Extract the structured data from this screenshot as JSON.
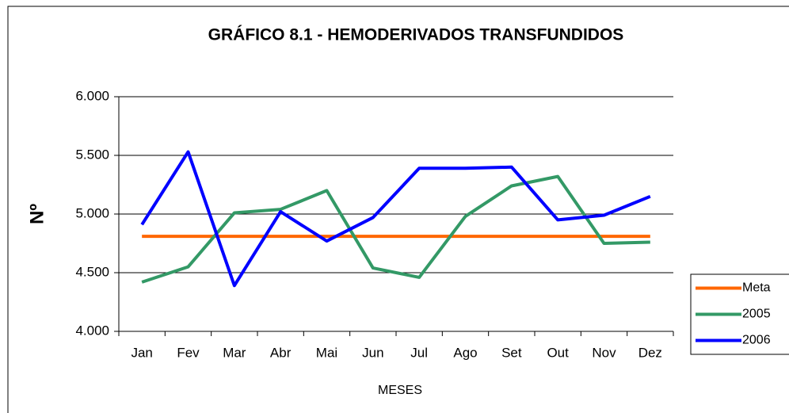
{
  "chart_data": {
    "type": "line",
    "title": "GRÁFICO 8.1 - HEMODERIVADOS TRANSFUNDIDOS",
    "x_label": "MESES",
    "y_label": "Nº",
    "categories": [
      "Jan",
      "Fev",
      "Mar",
      "Abr",
      "Mai",
      "Jun",
      "Jul",
      "Ago",
      "Set",
      "Out",
      "Nov",
      "Dez"
    ],
    "series": [
      {
        "name": "Meta",
        "color": "#ff6600",
        "values": [
          4810,
          4810,
          4810,
          4810,
          4810,
          4810,
          4810,
          4810,
          4810,
          4810,
          4810,
          4810
        ]
      },
      {
        "name": "2005",
        "color": "#339966",
        "values": [
          4420,
          4550,
          5010,
          5040,
          5200,
          4540,
          4460,
          4980,
          5240,
          5320,
          4750,
          4760
        ]
      },
      {
        "name": "2006",
        "color": "#0000ff",
        "values": [
          4910,
          5530,
          4390,
          5020,
          4770,
          4970,
          5390,
          5390,
          5400,
          4950,
          4990,
          5150
        ]
      }
    ],
    "ylim": [
      4000,
      6000
    ],
    "yticks": [
      {
        "value": 4000,
        "label": "4.000"
      },
      {
        "value": 4500,
        "label": "4.500"
      },
      {
        "value": 5000,
        "label": "5.000"
      },
      {
        "value": 5500,
        "label": "5.500"
      },
      {
        "value": 6000,
        "label": "6.000"
      }
    ],
    "grid": true,
    "legend": "right"
  }
}
